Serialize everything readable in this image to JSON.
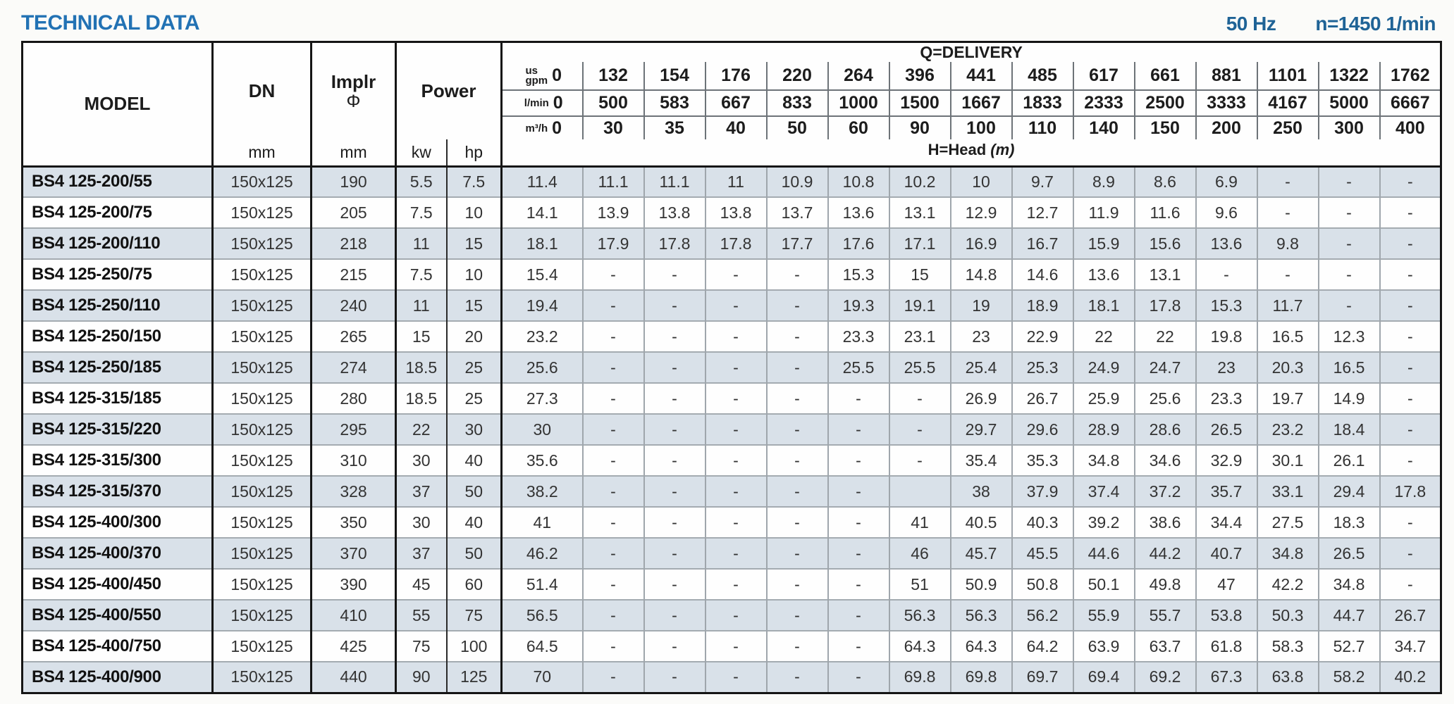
{
  "page": {
    "title": "TECHNICAL DATA",
    "frequency": "50 Hz",
    "speed": "n=1450 1/min"
  },
  "colors": {
    "title_blue": "#2272b4",
    "right_blue": "#1f6396",
    "row_shade": "#d9e1e9"
  },
  "table": {
    "col_headers": {
      "model": "MODEL",
      "dn": "DN",
      "dn_unit": "mm",
      "impeller": "Implr",
      "impeller_symbol": "Φ",
      "impeller_unit": "mm",
      "power": "Power",
      "power_kw": "kw",
      "power_hp": "hp",
      "delivery": "Q=DELIVERY",
      "head_label": "H=Head",
      "head_unit": "(m)"
    },
    "unit_labels": {
      "usgpm": "us\ngpm",
      "lmin": "l/min",
      "m3h": "m³/h"
    },
    "delivery_usgpm": [
      "0",
      "132",
      "154",
      "176",
      "220",
      "264",
      "396",
      "441",
      "485",
      "617",
      "661",
      "881",
      "1101",
      "1322",
      "1762"
    ],
    "delivery_lmin": [
      "0",
      "500",
      "583",
      "667",
      "833",
      "1000",
      "1500",
      "1667",
      "1833",
      "2333",
      "2500",
      "3333",
      "4167",
      "5000",
      "6667"
    ],
    "delivery_m3h": [
      "0",
      "30",
      "35",
      "40",
      "50",
      "60",
      "90",
      "100",
      "110",
      "140",
      "150",
      "200",
      "250",
      "300",
      "400"
    ],
    "rows": [
      {
        "model": "BS4 125-200/55",
        "dn": "150x125",
        "impeller": "190",
        "kw": "5.5",
        "hp": "7.5",
        "head": [
          "11.4",
          "11.1",
          "11.1",
          "11",
          "10.9",
          "10.8",
          "10.2",
          "10",
          "9.7",
          "8.9",
          "8.6",
          "6.9",
          "-",
          "-",
          "-"
        ]
      },
      {
        "model": "BS4 125-200/75",
        "dn": "150x125",
        "impeller": "205",
        "kw": "7.5",
        "hp": "10",
        "head": [
          "14.1",
          "13.9",
          "13.8",
          "13.8",
          "13.7",
          "13.6",
          "13.1",
          "12.9",
          "12.7",
          "11.9",
          "11.6",
          "9.6",
          "-",
          "-",
          "-"
        ]
      },
      {
        "model": "BS4 125-200/110",
        "dn": "150x125",
        "impeller": "218",
        "kw": "11",
        "hp": "15",
        "head": [
          "18.1",
          "17.9",
          "17.8",
          "17.8",
          "17.7",
          "17.6",
          "17.1",
          "16.9",
          "16.7",
          "15.9",
          "15.6",
          "13.6",
          "9.8",
          "-",
          "-"
        ]
      },
      {
        "model": "BS4 125-250/75",
        "dn": "150x125",
        "impeller": "215",
        "kw": "7.5",
        "hp": "10",
        "head": [
          "15.4",
          "-",
          "-",
          "-",
          "-",
          "15.3",
          "15",
          "14.8",
          "14.6",
          "13.6",
          "13.1",
          "-",
          "-",
          "-",
          "-"
        ]
      },
      {
        "model": "BS4 125-250/110",
        "dn": "150x125",
        "impeller": "240",
        "kw": "11",
        "hp": "15",
        "head": [
          "19.4",
          "-",
          "-",
          "-",
          "-",
          "19.3",
          "19.1",
          "19",
          "18.9",
          "18.1",
          "17.8",
          "15.3",
          "11.7",
          "-",
          "-"
        ]
      },
      {
        "model": "BS4 125-250/150",
        "dn": "150x125",
        "impeller": "265",
        "kw": "15",
        "hp": "20",
        "head": [
          "23.2",
          "-",
          "-",
          "-",
          "-",
          "23.3",
          "23.1",
          "23",
          "22.9",
          "22",
          "22",
          "19.8",
          "16.5",
          "12.3",
          "-"
        ]
      },
      {
        "model": "BS4 125-250/185",
        "dn": "150x125",
        "impeller": "274",
        "kw": "18.5",
        "hp": "25",
        "head": [
          "25.6",
          "-",
          "-",
          "-",
          "-",
          "25.5",
          "25.5",
          "25.4",
          "25.3",
          "24.9",
          "24.7",
          "23",
          "20.3",
          "16.5",
          "-"
        ]
      },
      {
        "model": "BS4 125-315/185",
        "dn": "150x125",
        "impeller": "280",
        "kw": "18.5",
        "hp": "25",
        "head": [
          "27.3",
          "-",
          "-",
          "-",
          "-",
          "-",
          "-",
          "26.9",
          "26.7",
          "25.9",
          "25.6",
          "23.3",
          "19.7",
          "14.9",
          "-"
        ]
      },
      {
        "model": "BS4 125-315/220",
        "dn": "150x125",
        "impeller": "295",
        "kw": "22",
        "hp": "30",
        "head": [
          "30",
          "-",
          "-",
          "-",
          "-",
          "-",
          "-",
          "29.7",
          "29.6",
          "28.9",
          "28.6",
          "26.5",
          "23.2",
          "18.4",
          "-"
        ]
      },
      {
        "model": "BS4 125-315/300",
        "dn": "150x125",
        "impeller": "310",
        "kw": "30",
        "hp": "40",
        "head": [
          "35.6",
          "-",
          "-",
          "-",
          "-",
          "-",
          "-",
          "35.4",
          "35.3",
          "34.8",
          "34.6",
          "32.9",
          "30.1",
          "26.1",
          "-"
        ]
      },
      {
        "model": "BS4 125-315/370",
        "dn": "150x125",
        "impeller": "328",
        "kw": "37",
        "hp": "50",
        "head": [
          "38.2",
          "-",
          "-",
          "-",
          "-",
          "-",
          "",
          "38",
          "37.9",
          "37.4",
          "37.2",
          "35.7",
          "33.1",
          "29.4",
          "17.8"
        ]
      },
      {
        "model": "BS4 125-400/300",
        "dn": "150x125",
        "impeller": "350",
        "kw": "30",
        "hp": "40",
        "head": [
          "41",
          "-",
          "-",
          "-",
          "-",
          "-",
          "41",
          "40.5",
          "40.3",
          "39.2",
          "38.6",
          "34.4",
          "27.5",
          "18.3",
          "-"
        ]
      },
      {
        "model": "BS4 125-400/370",
        "dn": "150x125",
        "impeller": "370",
        "kw": "37",
        "hp": "50",
        "head": [
          "46.2",
          "-",
          "-",
          "-",
          "-",
          "-",
          "46",
          "45.7",
          "45.5",
          "44.6",
          "44.2",
          "40.7",
          "34.8",
          "26.5",
          "-"
        ]
      },
      {
        "model": "BS4 125-400/450",
        "dn": "150x125",
        "impeller": "390",
        "kw": "45",
        "hp": "60",
        "head": [
          "51.4",
          "-",
          "-",
          "-",
          "-",
          "-",
          "51",
          "50.9",
          "50.8",
          "50.1",
          "49.8",
          "47",
          "42.2",
          "34.8",
          "-"
        ]
      },
      {
        "model": "BS4 125-400/550",
        "dn": "150x125",
        "impeller": "410",
        "kw": "55",
        "hp": "75",
        "head": [
          "56.5",
          "-",
          "-",
          "-",
          "-",
          "-",
          "56.3",
          "56.3",
          "56.2",
          "55.9",
          "55.7",
          "53.8",
          "50.3",
          "44.7",
          "26.7"
        ]
      },
      {
        "model": "BS4 125-400/750",
        "dn": "150x125",
        "impeller": "425",
        "kw": "75",
        "hp": "100",
        "head": [
          "64.5",
          "-",
          "-",
          "-",
          "-",
          "-",
          "64.3",
          "64.3",
          "64.2",
          "63.9",
          "63.7",
          "61.8",
          "58.3",
          "52.7",
          "34.7"
        ]
      },
      {
        "model": "BS4 125-400/900",
        "dn": "150x125",
        "impeller": "440",
        "kw": "90",
        "hp": "125",
        "head": [
          "70",
          "-",
          "-",
          "-",
          "-",
          "-",
          "69.8",
          "69.8",
          "69.7",
          "69.4",
          "69.2",
          "67.3",
          "63.8",
          "58.2",
          "40.2"
        ]
      }
    ]
  }
}
